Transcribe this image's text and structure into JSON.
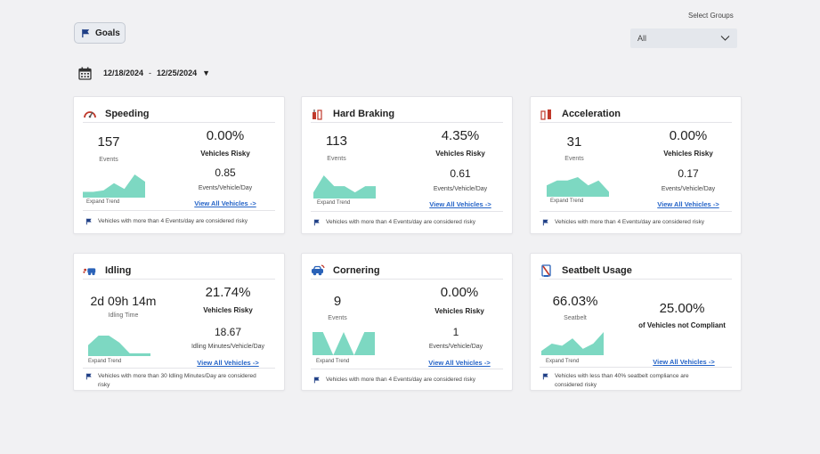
{
  "header": {
    "goals_label": "Goals",
    "group_label": "Select Groups",
    "group_value": "All",
    "date_start": "12/18/2024",
    "date_sep": "-",
    "date_end": "12/25/2024",
    "date_caret": "▼"
  },
  "colors": {
    "spark_fill": "#7dd8c2",
    "link": "#2463c7",
    "flag": "#1f3f86"
  },
  "cards": {
    "speeding": {
      "icon": "speedometer-icon",
      "title": "Speeding",
      "metric": "157",
      "metric_label": "Events",
      "pct": "0.00%",
      "pct_label": "Vehicles Risky",
      "rate": "0.85",
      "rate_label": "Events/Vehicle/Day",
      "expand": "Expand Trend",
      "link": "View All Vehicles ->",
      "note": "Vehicles with more than 4 Events/day are considered risky",
      "trend": [
        4,
        4,
        5,
        10,
        6,
        16,
        11
      ]
    },
    "hard_braking": {
      "icon": "brake-icon",
      "title": "Hard Braking",
      "metric": "113",
      "metric_label": "Events",
      "pct": "4.35%",
      "pct_label": "Vehicles Risky",
      "rate": "0.61",
      "rate_label": "Events/Vehicle/Day",
      "expand": "Expand Trend",
      "link": "View All Vehicles ->",
      "note": "Vehicles with more than 4 Events/day are considered risky",
      "trend": [
        4,
        15,
        8,
        8,
        4,
        8,
        8
      ]
    },
    "acceleration": {
      "icon": "accelerator-icon",
      "title": "Acceleration",
      "metric": "31",
      "metric_label": "Events",
      "pct": "0.00%",
      "pct_label": "Vehicles Risky",
      "rate": "0.17",
      "rate_label": "Events/Vehicle/Day",
      "expand": "Expand Trend",
      "link": "View All Vehicles ->",
      "note": "Vehicles with more than 4 Events/day are considered risky",
      "trend": [
        7,
        10,
        10,
        12,
        7,
        10,
        3
      ]
    },
    "idling": {
      "icon": "idling-icon",
      "title": "Idling",
      "metric": "2d 09h 14m",
      "metric_label": "Idling Time",
      "pct": "21.74%",
      "pct_label": "Vehicles Risky",
      "rate": "18.67",
      "rate_label": "Idling Minutes/Vehicle/Day",
      "expand": "Expand Trend",
      "link": "View All Vehicles ->",
      "note": "Vehicles with more than 30 Idling Minutes/Day are considered risky",
      "trend": [
        8,
        15,
        15,
        10,
        2,
        2,
        2
      ]
    },
    "cornering": {
      "icon": "cornering-icon",
      "title": "Cornering",
      "metric": "9",
      "metric_label": "Events",
      "pct": "0.00%",
      "pct_label": "Vehicles Risky",
      "rate": "1",
      "rate_label": "Events/Vehicle/Day",
      "expand": "Expand Trend",
      "link": "View All Vehicles ->",
      "note": "Vehicles with more than 4 Events/day are considered risky",
      "trend": [
        10,
        10,
        0,
        10,
        0,
        10,
        10
      ]
    },
    "seatbelt": {
      "icon": "seatbelt-icon",
      "title": "Seatbelt Usage",
      "metric": "66.03%",
      "metric_label": "Seatbelt",
      "pct": "25.00%",
      "pct_label": "of Vehicles not Compliant",
      "expand": "Expand Trend",
      "link": "View All Vehicles ->",
      "note": "Vehicles with less than 40% seatbelt compliance are considered risky",
      "trend": [
        4,
        11,
        9,
        16,
        6,
        11,
        22
      ]
    }
  }
}
